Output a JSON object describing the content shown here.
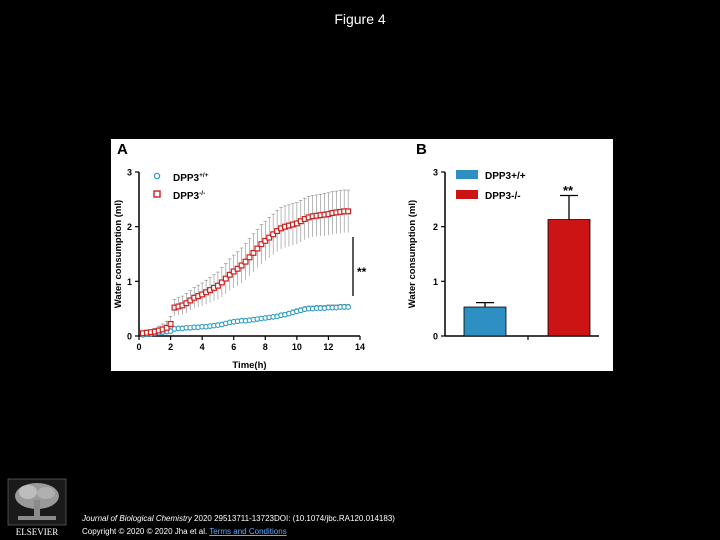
{
  "page": {
    "title": "Figure 4"
  },
  "colors": {
    "wt": "#2a9bc4",
    "ko": "#cc1f1f",
    "bar_wt": "#2e8fc2",
    "bar_ko": "#cc1414",
    "error": "#8a8a8a"
  },
  "chart_data": [
    {
      "panel": "A",
      "type": "scatter",
      "xlabel": "Time(h)",
      "ylabel": "Water consumption (ml)",
      "xlim": [
        0,
        14
      ],
      "ylim": [
        0,
        3
      ],
      "x_ticks": [
        "0",
        "2",
        "4",
        "6",
        "8",
        "10",
        "12",
        "14"
      ],
      "y_ticks": [
        "0",
        "1",
        "2",
        "3"
      ],
      "legend": [
        "DPP3",
        "DPP3"
      ],
      "legend_sup": [
        "+/+",
        "-/-"
      ],
      "significance": "**",
      "series": [
        {
          "name": "DPP3+/+",
          "marker": "circle",
          "x": [
            0.25,
            0.5,
            0.75,
            1.0,
            1.25,
            1.5,
            1.75,
            2.0,
            2.25,
            2.5,
            2.75,
            3.0,
            3.25,
            3.5,
            3.75,
            4.0,
            4.25,
            4.5,
            4.75,
            5.0,
            5.25,
            5.5,
            5.75,
            6.0,
            6.25,
            6.5,
            6.75,
            7.0,
            7.25,
            7.5,
            7.75,
            8.0,
            8.25,
            8.5,
            8.75,
            9.0,
            9.25,
            9.5,
            9.75,
            10.0,
            10.25,
            10.5,
            10.75,
            11.0,
            11.25,
            11.5,
            11.75,
            12.0,
            12.25,
            12.5,
            12.75,
            13.0,
            13.25
          ],
          "values": [
            0.02,
            0.03,
            0.04,
            0.05,
            0.06,
            0.07,
            0.08,
            0.09,
            0.13,
            0.14,
            0.14,
            0.15,
            0.15,
            0.16,
            0.16,
            0.17,
            0.17,
            0.18,
            0.19,
            0.2,
            0.21,
            0.23,
            0.25,
            0.26,
            0.27,
            0.28,
            0.28,
            0.29,
            0.3,
            0.31,
            0.32,
            0.33,
            0.34,
            0.35,
            0.36,
            0.38,
            0.39,
            0.41,
            0.43,
            0.45,
            0.47,
            0.49,
            0.5,
            0.5,
            0.51,
            0.51,
            0.51,
            0.52,
            0.52,
            0.52,
            0.53,
            0.53,
            0.53
          ],
          "error": [
            0.01,
            0.01,
            0.01,
            0.01,
            0.01,
            0.01,
            0.02,
            0.02,
            0.02,
            0.02,
            0.02,
            0.02,
            0.02,
            0.02,
            0.02,
            0.02,
            0.02,
            0.02,
            0.02,
            0.02,
            0.02,
            0.02,
            0.03,
            0.03,
            0.03,
            0.03,
            0.03,
            0.03,
            0.03,
            0.03,
            0.03,
            0.03,
            0.03,
            0.03,
            0.03,
            0.04,
            0.04,
            0.04,
            0.05,
            0.05,
            0.05,
            0.05,
            0.05,
            0.05,
            0.05,
            0.05,
            0.05,
            0.05,
            0.05,
            0.05,
            0.05,
            0.05,
            0.05
          ]
        },
        {
          "name": "DPP3-/-",
          "marker": "square",
          "x": [
            0.25,
            0.5,
            0.75,
            1.0,
            1.25,
            1.5,
            1.75,
            2.0,
            2.25,
            2.5,
            2.75,
            3.0,
            3.25,
            3.5,
            3.75,
            4.0,
            4.25,
            4.5,
            4.75,
            5.0,
            5.25,
            5.5,
            5.75,
            6.0,
            6.25,
            6.5,
            6.75,
            7.0,
            7.25,
            7.5,
            7.75,
            8.0,
            8.25,
            8.5,
            8.75,
            9.0,
            9.25,
            9.5,
            9.75,
            10.0,
            10.25,
            10.5,
            10.75,
            11.0,
            11.25,
            11.5,
            11.75,
            12.0,
            12.25,
            12.5,
            12.75,
            13.0,
            13.25
          ],
          "values": [
            0.05,
            0.06,
            0.07,
            0.08,
            0.1,
            0.12,
            0.15,
            0.22,
            0.52,
            0.54,
            0.56,
            0.6,
            0.65,
            0.7,
            0.73,
            0.76,
            0.8,
            0.84,
            0.88,
            0.92,
            0.98,
            1.05,
            1.12,
            1.18,
            1.23,
            1.29,
            1.36,
            1.44,
            1.52,
            1.6,
            1.68,
            1.74,
            1.8,
            1.86,
            1.92,
            1.97,
            2.0,
            2.02,
            2.04,
            2.06,
            2.1,
            2.14,
            2.17,
            2.19,
            2.2,
            2.21,
            2.22,
            2.23,
            2.25,
            2.26,
            2.27,
            2.28,
            2.28
          ],
          "error": [
            0.02,
            0.03,
            0.04,
            0.06,
            0.08,
            0.1,
            0.12,
            0.14,
            0.15,
            0.16,
            0.17,
            0.18,
            0.18,
            0.19,
            0.2,
            0.21,
            0.22,
            0.23,
            0.24,
            0.25,
            0.27,
            0.28,
            0.29,
            0.3,
            0.31,
            0.32,
            0.33,
            0.34,
            0.35,
            0.35,
            0.36,
            0.36,
            0.37,
            0.37,
            0.38,
            0.38,
            0.38,
            0.38,
            0.38,
            0.38,
            0.38,
            0.38,
            0.38,
            0.38,
            0.38,
            0.38,
            0.39,
            0.39,
            0.39,
            0.39,
            0.39,
            0.39,
            0.39
          ]
        }
      ]
    },
    {
      "panel": "B",
      "type": "bar",
      "ylabel": "Water consumption (ml)",
      "ylim": [
        0,
        3
      ],
      "y_ticks": [
        "0",
        "1",
        "2",
        "3"
      ],
      "categories": [
        "DPP3+/+",
        "DPP3-/-"
      ],
      "values": [
        0.53,
        2.13
      ],
      "error": [
        0.08,
        0.44
      ],
      "legend": [
        "DPP3+/+",
        "DPP3-/-"
      ],
      "significance": "**"
    }
  ],
  "footer": {
    "journal": "Journal of Biological Chemistry",
    "citation": " 2020 29513711-13723DOI: (10.1074/jbc.RA120.014183)",
    "copyright": "Copyright © 2020 © 2020 Jha et al. ",
    "license": "Terms and Conditions"
  }
}
